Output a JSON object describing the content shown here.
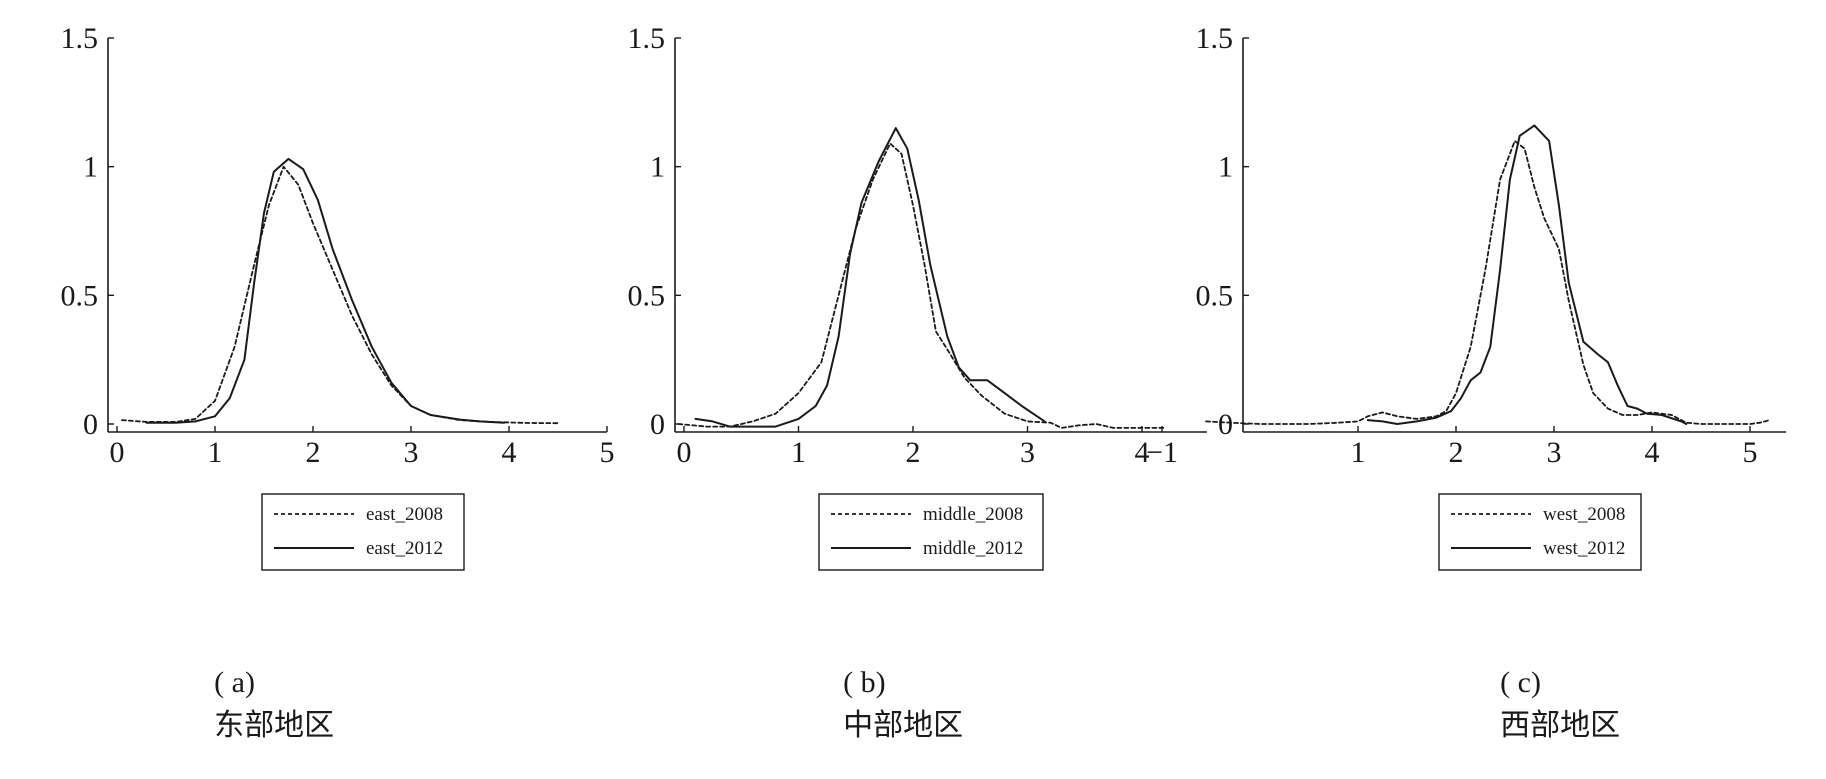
{
  "chart_data": [
    {
      "type": "line",
      "caption_label": "( a)",
      "caption_title": "东部地区",
      "xlim": [
        0,
        5
      ],
      "ylim": [
        0,
        1.5
      ],
      "x_ticks": [
        "0",
        "1",
        "2",
        "3",
        "4",
        "5"
      ],
      "y_ticks": [
        "0",
        "0.5",
        "1",
        "1.5"
      ],
      "legend_placement": "bottom-center",
      "series": [
        {
          "name": "east_2008",
          "style": "dashed",
          "points": [
            [
              0.05,
              0.015
            ],
            [
              0.3,
              0.008
            ],
            [
              0.6,
              0.008
            ],
            [
              0.8,
              0.02
            ],
            [
              1.0,
              0.09
            ],
            [
              1.2,
              0.3
            ],
            [
              1.4,
              0.62
            ],
            [
              1.55,
              0.85
            ],
            [
              1.7,
              1.0
            ],
            [
              1.85,
              0.93
            ],
            [
              2.0,
              0.78
            ],
            [
              2.2,
              0.6
            ],
            [
              2.4,
              0.42
            ],
            [
              2.6,
              0.27
            ],
            [
              2.8,
              0.15
            ],
            [
              3.0,
              0.07
            ],
            [
              3.2,
              0.035
            ],
            [
              3.5,
              0.015
            ],
            [
              3.8,
              0.008
            ],
            [
              4.2,
              0.004
            ],
            [
              4.5,
              0.003
            ]
          ]
        },
        {
          "name": "east_2012",
          "style": "solid",
          "points": [
            [
              0.3,
              0.005
            ],
            [
              0.6,
              0.005
            ],
            [
              0.8,
              0.01
            ],
            [
              1.0,
              0.03
            ],
            [
              1.15,
              0.1
            ],
            [
              1.3,
              0.25
            ],
            [
              1.4,
              0.55
            ],
            [
              1.5,
              0.82
            ],
            [
              1.6,
              0.98
            ],
            [
              1.75,
              1.03
            ],
            [
              1.9,
              0.99
            ],
            [
              2.05,
              0.87
            ],
            [
              2.2,
              0.68
            ],
            [
              2.4,
              0.48
            ],
            [
              2.6,
              0.3
            ],
            [
              2.8,
              0.16
            ],
            [
              3.0,
              0.07
            ],
            [
              3.2,
              0.035
            ],
            [
              3.5,
              0.017
            ],
            [
              3.7,
              0.01
            ],
            [
              3.95,
              0.005
            ]
          ]
        }
      ]
    },
    {
      "type": "line",
      "caption_label": "( b)",
      "caption_title": "中部地区",
      "xlim": [
        0,
        4.3
      ],
      "ylim": [
        0,
        1.5
      ],
      "x_ticks": [
        "0",
        "1",
        "2",
        "3",
        "4"
      ],
      "y_ticks": [
        "0",
        "0.5",
        "1",
        "1.5"
      ],
      "legend_placement": "bottom-center",
      "series": [
        {
          "name": "middle_2008",
          "style": "dashed",
          "points": [
            [
              -0.05,
              0.0
            ],
            [
              0.2,
              -0.01
            ],
            [
              0.4,
              -0.01
            ],
            [
              0.6,
              0.01
            ],
            [
              0.8,
              0.04
            ],
            [
              1.0,
              0.12
            ],
            [
              1.2,
              0.24
            ],
            [
              1.35,
              0.5
            ],
            [
              1.5,
              0.76
            ],
            [
              1.65,
              0.95
            ],
            [
              1.8,
              1.09
            ],
            [
              1.9,
              1.05
            ],
            [
              2.0,
              0.85
            ],
            [
              2.1,
              0.62
            ],
            [
              2.2,
              0.36
            ],
            [
              2.3,
              0.29
            ],
            [
              2.45,
              0.18
            ],
            [
              2.6,
              0.11
            ],
            [
              2.8,
              0.04
            ],
            [
              3.0,
              0.01
            ],
            [
              3.2,
              0.005
            ],
            [
              3.3,
              -0.015
            ],
            [
              3.45,
              -0.005
            ],
            [
              3.6,
              0.0
            ],
            [
              3.75,
              -0.015
            ],
            [
              3.9,
              -0.015
            ],
            [
              4.2,
              -0.015
            ]
          ]
        },
        {
          "name": "middle_2012",
          "style": "solid",
          "points": [
            [
              0.1,
              0.02
            ],
            [
              0.25,
              0.01
            ],
            [
              0.4,
              -0.01
            ],
            [
              0.6,
              -0.01
            ],
            [
              0.8,
              -0.01
            ],
            [
              1.0,
              0.02
            ],
            [
              1.15,
              0.07
            ],
            [
              1.25,
              0.15
            ],
            [
              1.35,
              0.34
            ],
            [
              1.45,
              0.66
            ],
            [
              1.55,
              0.86
            ],
            [
              1.7,
              1.02
            ],
            [
              1.85,
              1.15
            ],
            [
              1.95,
              1.07
            ],
            [
              2.05,
              0.87
            ],
            [
              2.15,
              0.62
            ],
            [
              2.3,
              0.34
            ],
            [
              2.4,
              0.22
            ],
            [
              2.5,
              0.17
            ],
            [
              2.65,
              0.17
            ],
            [
              2.8,
              0.12
            ],
            [
              2.95,
              0.07
            ],
            [
              3.05,
              0.04
            ],
            [
              3.15,
              0.01
            ]
          ]
        }
      ]
    },
    {
      "type": "line",
      "caption_label": "( c)",
      "caption_title": "西部地区",
      "xlim": [
        -1.1,
        5.3
      ],
      "ylim": [
        0,
        1.5
      ],
      "x_ticks": [
        "−1",
        "1",
        "2",
        "3",
        "4",
        "5"
      ],
      "y_ticks": [
        "0",
        "0.5",
        "1",
        "1.5"
      ],
      "legend_placement": "bottom-center",
      "series": [
        {
          "name": "west_2008",
          "style": "dashed",
          "points": [
            [
              -0.55,
              0.01
            ],
            [
              -0.3,
              0.005
            ],
            [
              0.0,
              0.0
            ],
            [
              0.5,
              0.0
            ],
            [
              0.8,
              0.005
            ],
            [
              1.0,
              0.01
            ],
            [
              1.1,
              0.03
            ],
            [
              1.25,
              0.045
            ],
            [
              1.4,
              0.03
            ],
            [
              1.6,
              0.02
            ],
            [
              1.8,
              0.03
            ],
            [
              1.9,
              0.05
            ],
            [
              2.0,
              0.12
            ],
            [
              2.15,
              0.3
            ],
            [
              2.3,
              0.6
            ],
            [
              2.45,
              0.95
            ],
            [
              2.6,
              1.1
            ],
            [
              2.7,
              1.07
            ],
            [
              2.8,
              0.92
            ],
            [
              2.9,
              0.8
            ],
            [
              3.05,
              0.68
            ],
            [
              3.15,
              0.48
            ],
            [
              3.3,
              0.23
            ],
            [
              3.4,
              0.12
            ],
            [
              3.55,
              0.06
            ],
            [
              3.7,
              0.035
            ],
            [
              3.85,
              0.035
            ],
            [
              4.0,
              0.045
            ],
            [
              4.2,
              0.035
            ],
            [
              4.35,
              0.005
            ],
            [
              4.5,
              0.0
            ],
            [
              4.8,
              0.0
            ],
            [
              5.0,
              0.0
            ],
            [
              5.1,
              0.005
            ],
            [
              5.2,
              0.015
            ]
          ]
        },
        {
          "name": "west_2012",
          "style": "solid",
          "points": [
            [
              1.1,
              0.015
            ],
            [
              1.25,
              0.01
            ],
            [
              1.4,
              0.0
            ],
            [
              1.6,
              0.01
            ],
            [
              1.8,
              0.025
            ],
            [
              1.95,
              0.05
            ],
            [
              2.05,
              0.1
            ],
            [
              2.15,
              0.17
            ],
            [
              2.25,
              0.2
            ],
            [
              2.35,
              0.3
            ],
            [
              2.45,
              0.6
            ],
            [
              2.55,
              0.95
            ],
            [
              2.65,
              1.12
            ],
            [
              2.8,
              1.16
            ],
            [
              2.95,
              1.1
            ],
            [
              3.05,
              0.85
            ],
            [
              3.15,
              0.55
            ],
            [
              3.3,
              0.32
            ],
            [
              3.45,
              0.27
            ],
            [
              3.55,
              0.24
            ],
            [
              3.65,
              0.15
            ],
            [
              3.75,
              0.07
            ],
            [
              3.85,
              0.06
            ],
            [
              3.95,
              0.04
            ],
            [
              4.1,
              0.035
            ],
            [
              4.3,
              0.01
            ],
            [
              4.35,
              0.0
            ]
          ]
        }
      ]
    }
  ]
}
